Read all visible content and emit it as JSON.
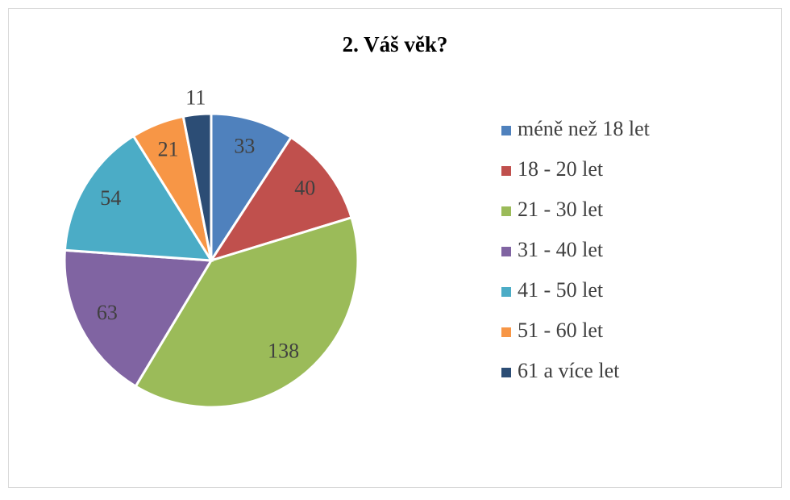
{
  "chart_data": {
    "type": "pie",
    "title": "2. Váš věk?",
    "categories": [
      "méně než 18 let",
      "18 - 20 let",
      "21 - 30 let",
      "31 - 40 let",
      "41 - 50 let",
      "51 - 60 let",
      "61 a více let"
    ],
    "values": [
      33,
      40,
      138,
      63,
      54,
      21,
      11
    ],
    "colors": [
      "#4f81bd",
      "#c0504d",
      "#9bbb59",
      "#8064a2",
      "#4bacc6",
      "#f79646",
      "#2c4d75"
    ],
    "legend": "right"
  }
}
